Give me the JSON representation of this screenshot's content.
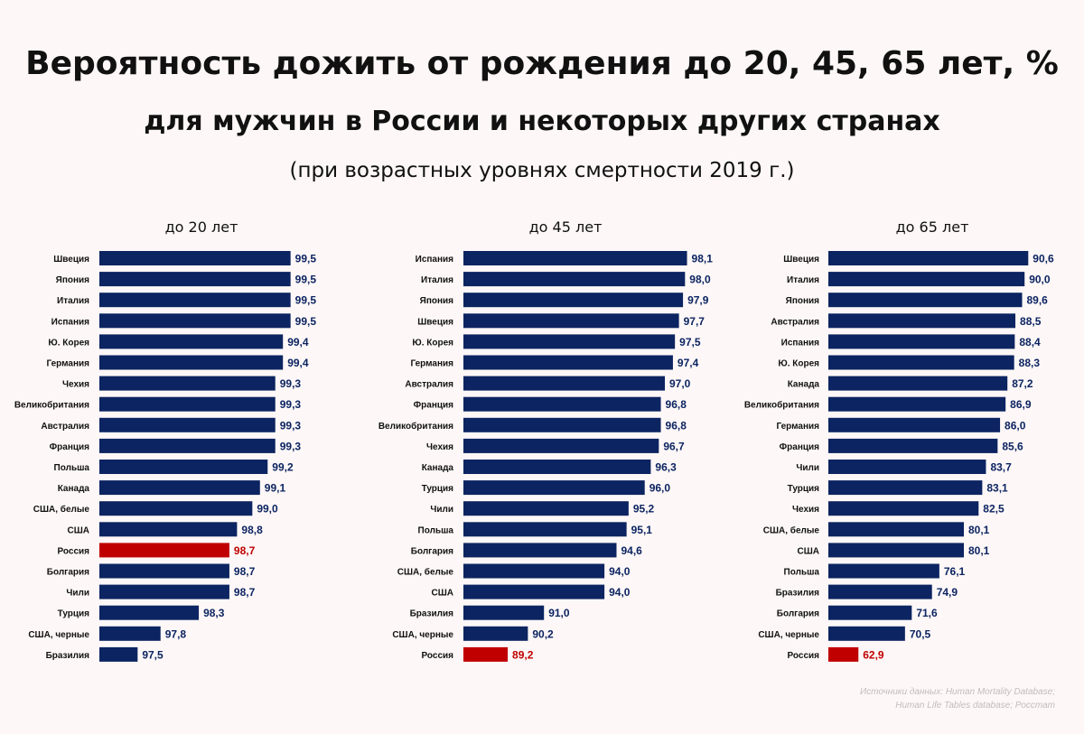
{
  "header": {
    "title": "Вероятность дожить от рождения до 20, 45, 65 лет, %",
    "subtitle": "для мужчин в России и некоторых других странах",
    "note": "(при возрастных уровнях смертности 2019 г.)"
  },
  "colors": {
    "bar": "#0c2461",
    "highlight": "#c00000",
    "label": "#111111"
  },
  "source": {
    "line1": "Источники данных: Human Mortality Database;",
    "line2": "Human Life Tables database; Росстат"
  },
  "chart_data": [
    {
      "type": "bar",
      "orientation": "horizontal",
      "title": "до 20 лет",
      "xlim": [
        97,
        100
      ],
      "highlight": "Россия",
      "categories": [
        "Швеция",
        "Япония",
        "Италия",
        "Испания",
        "Ю. Корея",
        "Германия",
        "Чехия",
        "Великобритания",
        "Австралия",
        "Франция",
        "Польша",
        "Канада",
        "США, белые",
        "США",
        "Россия",
        "Болгария",
        "Чили",
        "Турция",
        "США, черные",
        "Бразилия"
      ],
      "values": [
        99.5,
        99.5,
        99.5,
        99.5,
        99.4,
        99.4,
        99.3,
        99.3,
        99.3,
        99.3,
        99.2,
        99.1,
        99.0,
        98.8,
        98.7,
        98.7,
        98.7,
        98.3,
        97.8,
        97.5
      ],
      "value_labels": [
        "99,5",
        "99,5",
        "99,5",
        "99,5",
        "99,4",
        "99,4",
        "99,3",
        "99,3",
        "99,3",
        "99,3",
        "99,2",
        "99,1",
        "99,0",
        "98,8",
        "98,7",
        "98,7",
        "98,7",
        "98,3",
        "97,8",
        "97,5"
      ]
    },
    {
      "type": "bar",
      "orientation": "horizontal",
      "title": "до 45 лет",
      "xlim": [
        87,
        98.3
      ],
      "highlight": "Россия",
      "categories": [
        "Испания",
        "Италия",
        "Япония",
        "Швеция",
        "Ю. Корея",
        "Германия",
        "Австралия",
        "Франция",
        "Великобритания",
        "Чехия",
        "Канада",
        "Турция",
        "Чили",
        "Польша",
        "Болгария",
        "США, белые",
        "США",
        "Бразилия",
        "США, черные",
        "Россия"
      ],
      "values": [
        98.1,
        98.0,
        97.9,
        97.7,
        97.5,
        97.4,
        97.0,
        96.8,
        96.8,
        96.7,
        96.3,
        96.0,
        95.2,
        95.1,
        94.6,
        94.0,
        94.0,
        91.0,
        90.2,
        89.2
      ],
      "value_labels": [
        "98,1",
        "98,0",
        "97,9",
        "97,7",
        "97,5",
        "97,4",
        "97,0",
        "96,8",
        "96,8",
        "96,7",
        "96,3",
        "96,0",
        "95,2",
        "95,1",
        "94,6",
        "94,0",
        "94,0",
        "91,0",
        "90,2",
        "89,2"
      ]
    },
    {
      "type": "bar",
      "orientation": "horizontal",
      "title": "до 65 лет",
      "xlim": [
        58,
        91
      ],
      "highlight": "Россия",
      "categories": [
        "Швеция",
        "Италия",
        "Япония",
        "Австралия",
        "Испания",
        "Ю. Корея",
        "Канада",
        "Великобритания",
        "Германия",
        "Франция",
        "Чили",
        "Турция",
        "Чехия",
        "США, белые",
        "США",
        "Польша",
        "Бразилия",
        "Болгария",
        "США, черные",
        "Россия"
      ],
      "values": [
        90.6,
        90.0,
        89.6,
        88.5,
        88.4,
        88.3,
        87.2,
        86.9,
        86.0,
        85.6,
        83.7,
        83.1,
        82.5,
        80.1,
        80.1,
        76.1,
        74.9,
        71.6,
        70.5,
        62.9
      ],
      "value_labels": [
        "90,6",
        "90,0",
        "89,6",
        "88,5",
        "88,4",
        "88,3",
        "87,2",
        "86,9",
        "86,0",
        "85,6",
        "83,7",
        "83,1",
        "82,5",
        "80,1",
        "80,1",
        "76,1",
        "74,9",
        "71,6",
        "70,5",
        "62,9"
      ]
    }
  ]
}
